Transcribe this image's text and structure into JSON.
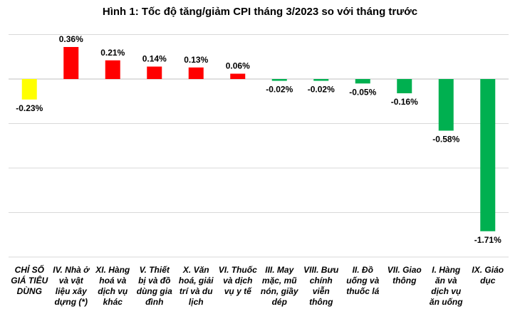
{
  "chart_data": {
    "type": "bar",
    "title": "Hình 1: Tốc độ tăng/giảm CPI tháng 3/2023 so với tháng trước",
    "categories": [
      "CHỈ SỐ GIÁ TIÊU DÙNG",
      "IV. Nhà ở và vật liệu xây dựng (*)",
      "XI. Hàng hoá và dịch vụ khác",
      "V. Thiết bị và đồ dùng gia đình",
      "X. Văn hoá, giải trí và du lịch",
      "VI. Thuốc và dịch vụ y tế",
      "III. May mặc, mũ nón, giầy dép",
      "VIII. Bưu chính viễn thông",
      "II. Đồ uống và thuốc lá",
      "VII. Giao thông",
      "I. Hàng ăn và dịch vụ ăn uống",
      "IX. Giáo dục"
    ],
    "category_lines": [
      "CHỈ SỐ\nGIÁ TIÊU\nDÙNG",
      "IV. Nhà ở\nvà vật\nliệu xây\ndựng (*)",
      "XI. Hàng\nhoá và\ndịch vụ\nkhác",
      "V. Thiết\nbị và đồ\ndùng gia\nđình",
      "X. Văn\nhoá, giải\ntrí và du\nlịch",
      "VI. Thuốc\nvà dịch\nvụ y tế",
      "III. May\nmặc, mũ\nnón, giầy\ndép",
      "VIII. Bưu\nchính\nviễn\nthông",
      "II. Đồ\nuống và\nthuốc lá",
      "VII. Giao\nthông",
      "I. Hàng\năn và\ndịch vụ\năn uống",
      "IX. Giáo\ndục"
    ],
    "values": [
      -0.23,
      0.36,
      0.21,
      0.14,
      0.13,
      0.06,
      -0.02,
      -0.02,
      -0.05,
      -0.16,
      -0.58,
      -1.71
    ],
    "value_labels": [
      "-0.23%",
      "0.36%",
      "0.21%",
      "0.14%",
      "0.13%",
      "0.06%",
      "-0.02%",
      "-0.02%",
      "-0.05%",
      "-0.16%",
      "-0.58%",
      "-1.71%"
    ],
    "ylim": [
      -2.0,
      0.5
    ],
    "grid": true,
    "colors": {
      "total": "#FFFF00",
      "increase": "#FF0000",
      "decrease": "#00B050",
      "gridline": "#D9D9D9",
      "zero_line": "#BFBFBF"
    }
  }
}
